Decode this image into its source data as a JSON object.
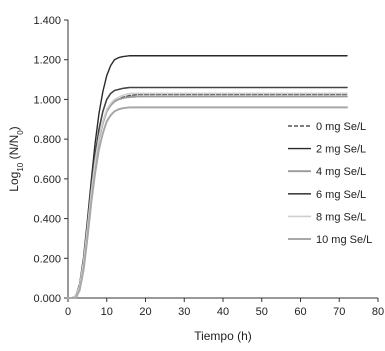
{
  "chart_data": {
    "type": "line",
    "title": "",
    "xlabel": "Tiempo (h)",
    "ylabel_parts": {
      "main": "Log",
      "sub": "10",
      "rest_open": " (N/N",
      "sub2": "0",
      "rest_close": ")"
    },
    "xlim": [
      0,
      80
    ],
    "ylim": [
      0,
      1.4
    ],
    "x_ticks": [
      0,
      10,
      20,
      30,
      40,
      50,
      60,
      70,
      80
    ],
    "x_tick_labels": [
      "0",
      "10",
      "20",
      "30",
      "40",
      "50",
      "60",
      "70",
      "80"
    ],
    "y_ticks": [
      0,
      0.2,
      0.4,
      0.6,
      0.8,
      1.0,
      1.2,
      1.4
    ],
    "y_tick_labels": [
      "0.000",
      "0.200",
      "0.400",
      "0.600",
      "0.800",
      "1.000",
      "1.200",
      "1.400"
    ],
    "grid": false,
    "legend_position": "right",
    "x": [
      0,
      1,
      2,
      3,
      4,
      5,
      6,
      7,
      8,
      9,
      10,
      11,
      12,
      13,
      14,
      15,
      16,
      18,
      20,
      25,
      30,
      40,
      50,
      60,
      72
    ],
    "series": [
      {
        "name": "0 mg Se/L",
        "color": "#555555",
        "dash": "4,2",
        "width": 1.4,
        "values": [
          0.0,
          0.0,
          0.01,
          0.06,
          0.18,
          0.35,
          0.53,
          0.69,
          0.81,
          0.89,
          0.94,
          0.97,
          0.99,
          1.0,
          1.01,
          1.015,
          1.02,
          1.025,
          1.025,
          1.025,
          1.025,
          1.025,
          1.025,
          1.025,
          1.025
        ]
      },
      {
        "name": "2 mg Se/L",
        "color": "#2a2a2a",
        "dash": "",
        "width": 1.4,
        "values": [
          0.0,
          0.0,
          0.01,
          0.07,
          0.2,
          0.39,
          0.59,
          0.78,
          0.93,
          1.04,
          1.12,
          1.17,
          1.2,
          1.21,
          1.215,
          1.218,
          1.22,
          1.22,
          1.22,
          1.22,
          1.22,
          1.22,
          1.22,
          1.22,
          1.22
        ]
      },
      {
        "name": "4 mg Se/L",
        "color": "#9a9a9a",
        "dash": "",
        "width": 1.8,
        "values": [
          0.0,
          0.0,
          0.01,
          0.06,
          0.17,
          0.34,
          0.52,
          0.68,
          0.8,
          0.88,
          0.94,
          0.97,
          0.99,
          1.0,
          1.005,
          1.01,
          1.012,
          1.015,
          1.015,
          1.015,
          1.015,
          1.015,
          1.015,
          1.015,
          1.015
        ]
      },
      {
        "name": "6 mg Se/L",
        "color": "#444444",
        "dash": "",
        "width": 1.6,
        "values": [
          0.0,
          0.0,
          0.01,
          0.06,
          0.19,
          0.37,
          0.56,
          0.72,
          0.85,
          0.94,
          1.0,
          1.03,
          1.045,
          1.05,
          1.055,
          1.058,
          1.06,
          1.06,
          1.06,
          1.06,
          1.06,
          1.06,
          1.06,
          1.06,
          1.06
        ]
      },
      {
        "name": "8 mg Se/L",
        "color": "#cfcfcf",
        "dash": "",
        "width": 1.6,
        "values": [
          0.0,
          0.0,
          0.01,
          0.06,
          0.18,
          0.35,
          0.53,
          0.69,
          0.81,
          0.89,
          0.95,
          0.98,
          1.0,
          1.01,
          1.02,
          1.025,
          1.03,
          1.03,
          1.03,
          1.03,
          1.03,
          1.03,
          1.03,
          1.03,
          1.03
        ]
      },
      {
        "name": "10 mg Se/L",
        "color": "#a8a8a8",
        "dash": "",
        "width": 2.0,
        "values": [
          0.0,
          0.0,
          0.0,
          0.04,
          0.14,
          0.3,
          0.48,
          0.63,
          0.75,
          0.83,
          0.89,
          0.92,
          0.94,
          0.95,
          0.955,
          0.958,
          0.96,
          0.96,
          0.96,
          0.96,
          0.96,
          0.96,
          0.96,
          0.96,
          0.96
        ]
      }
    ]
  }
}
